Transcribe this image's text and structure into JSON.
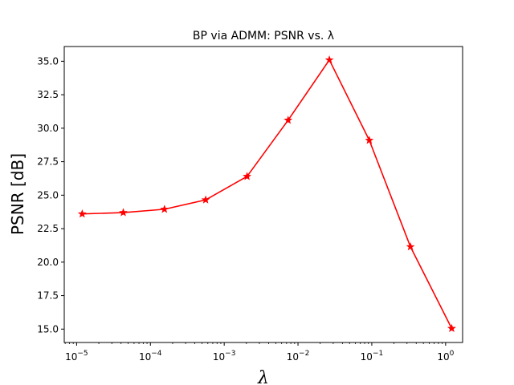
{
  "chart_data": {
    "type": "line",
    "title": "BP via ADMM: PSNR vs. λ",
    "xlabel": "λ",
    "ylabel": "PSNR [dB]",
    "xscale": "log",
    "xlim": [
      6.8e-06,
      1.7
    ],
    "ylim": [
      14.0,
      36.1
    ],
    "x_ticks": [
      {
        "value": 1e-05,
        "base": "10",
        "exp": "−5"
      },
      {
        "value": 0.0001,
        "base": "10",
        "exp": "−4"
      },
      {
        "value": 0.001,
        "base": "10",
        "exp": "−3"
      },
      {
        "value": 0.01,
        "base": "10",
        "exp": "−2"
      },
      {
        "value": 0.1,
        "base": "10",
        "exp": "−1"
      },
      {
        "value": 1,
        "base": "10",
        "exp": "0"
      }
    ],
    "y_ticks": [
      "15.0",
      "17.5",
      "20.0",
      "22.5",
      "25.0",
      "27.5",
      "30.0",
      "32.5",
      "35.0"
    ],
    "grid": false,
    "series": [
      {
        "color": "#ff0000",
        "marker": "star",
        "x": [
          1.19e-05,
          4.29e-05,
          0.000155,
          0.000561,
          0.00204,
          0.00735,
          0.0266,
          0.0925,
          0.334,
          1.21
        ],
        "y": [
          23.6,
          23.7,
          23.95,
          24.65,
          26.4,
          30.6,
          35.1,
          29.1,
          21.15,
          15.05
        ]
      }
    ]
  }
}
